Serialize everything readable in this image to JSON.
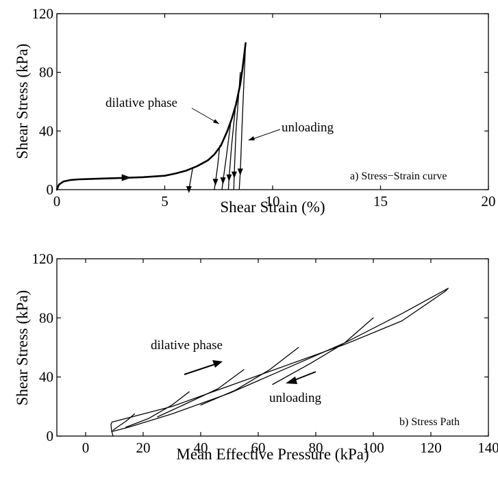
{
  "chart_data": [
    {
      "type": "line",
      "panel_label": "a) Stress−Strain curve",
      "xlabel": "Shear Strain  (%)",
      "ylabel": "Shear Stress  (kPa)",
      "xlim": [
        0,
        20
      ],
      "ylim": [
        0,
        120
      ],
      "xticks": [
        "0",
        "5",
        "10",
        "15",
        "20"
      ],
      "yticks": [
        "0",
        "40",
        "80",
        "120"
      ],
      "annotations": [
        "dilative phase",
        "unloading"
      ],
      "series": [
        {
          "x": [
            0.0,
            0.1,
            0.3,
            0.6,
            1.0,
            2.0,
            3.0,
            4.0,
            5.0,
            5.5,
            6.0,
            6.5,
            7.0,
            7.3,
            7.6,
            7.9,
            8.1,
            8.3,
            8.5,
            8.6,
            8.75
          ],
          "y": [
            0.0,
            3.5,
            5.5,
            6.5,
            7.0,
            7.5,
            8.0,
            8.5,
            9.5,
            11.0,
            13.0,
            16.0,
            20.0,
            24.0,
            30.0,
            40.0,
            48.0,
            58.0,
            72.0,
            82.0,
            100.0
          ]
        },
        {
          "x": [
            6.3,
            6.12
          ],
          "y": [
            15.0,
            0.0
          ]
        },
        {
          "x": [
            7.55,
            7.45,
            7.35,
            7.3
          ],
          "y": [
            30.0,
            16.0,
            5.0,
            0.0
          ]
        },
        {
          "x": [
            8.05,
            7.85,
            7.7,
            7.65
          ],
          "y": [
            45.0,
            22.0,
            6.0,
            0.0
          ]
        },
        {
          "x": [
            8.3,
            8.1,
            7.98,
            7.95
          ],
          "y": [
            60.0,
            30.0,
            8.0,
            0.0
          ]
        },
        {
          "x": [
            8.5,
            8.3,
            8.22,
            8.2
          ],
          "y": [
            80.0,
            40.0,
            10.0,
            0.0
          ]
        },
        {
          "x": [
            8.75,
            8.6,
            8.5,
            8.45
          ],
          "y": [
            100.0,
            50.0,
            12.0,
            0.0
          ]
        }
      ]
    },
    {
      "type": "line",
      "panel_label": "b) Stress Path",
      "xlabel": "Mean Effective Pressure (kPa)",
      "ylabel": "Shear Stress  (kPa)",
      "xlim": [
        -10,
        140
      ],
      "ylim": [
        0,
        120
      ],
      "xticks": [
        "0",
        "20",
        "40",
        "60",
        "80",
        "100",
        "120",
        "140"
      ],
      "yticks": [
        "0",
        "40",
        "80",
        "120"
      ],
      "annotations": [
        "dilative phase",
        "unloading"
      ],
      "series": [
        {
          "x": [
            9.5,
            9.0,
            8.8,
            9.2,
            30,
            60,
            90,
            110,
            125,
            126
          ],
          "y": [
            0.0,
            4.0,
            8.0,
            9.5,
            20.0,
            41.0,
            62.0,
            78.0,
            98.0,
            100.0
          ]
        },
        {
          "x": [
            126,
            110,
            90,
            70,
            50,
            30,
            15,
            9.0
          ],
          "y": [
            100.0,
            83.0,
            63.0,
            46.0,
            29.0,
            15.0,
            6.0,
            3.0
          ]
        },
        {
          "x": [
            17,
            14,
            11,
            9.5
          ],
          "y": [
            15.0,
            10.0,
            6.0,
            4.0
          ]
        },
        {
          "x": [
            36,
            30,
            22,
            14
          ],
          "y": [
            30.0,
            21.0,
            12.0,
            6.0
          ]
        },
        {
          "x": [
            55,
            46,
            35,
            25
          ],
          "y": [
            45.0,
            32.0,
            22.0,
            13.0
          ]
        },
        {
          "x": [
            74,
            64,
            52,
            40
          ],
          "y": [
            60.0,
            45.0,
            31.0,
            21.0
          ]
        },
        {
          "x": [
            100,
            90,
            78,
            65
          ],
          "y": [
            80.0,
            63.0,
            49.0,
            35.0
          ]
        }
      ]
    }
  ]
}
